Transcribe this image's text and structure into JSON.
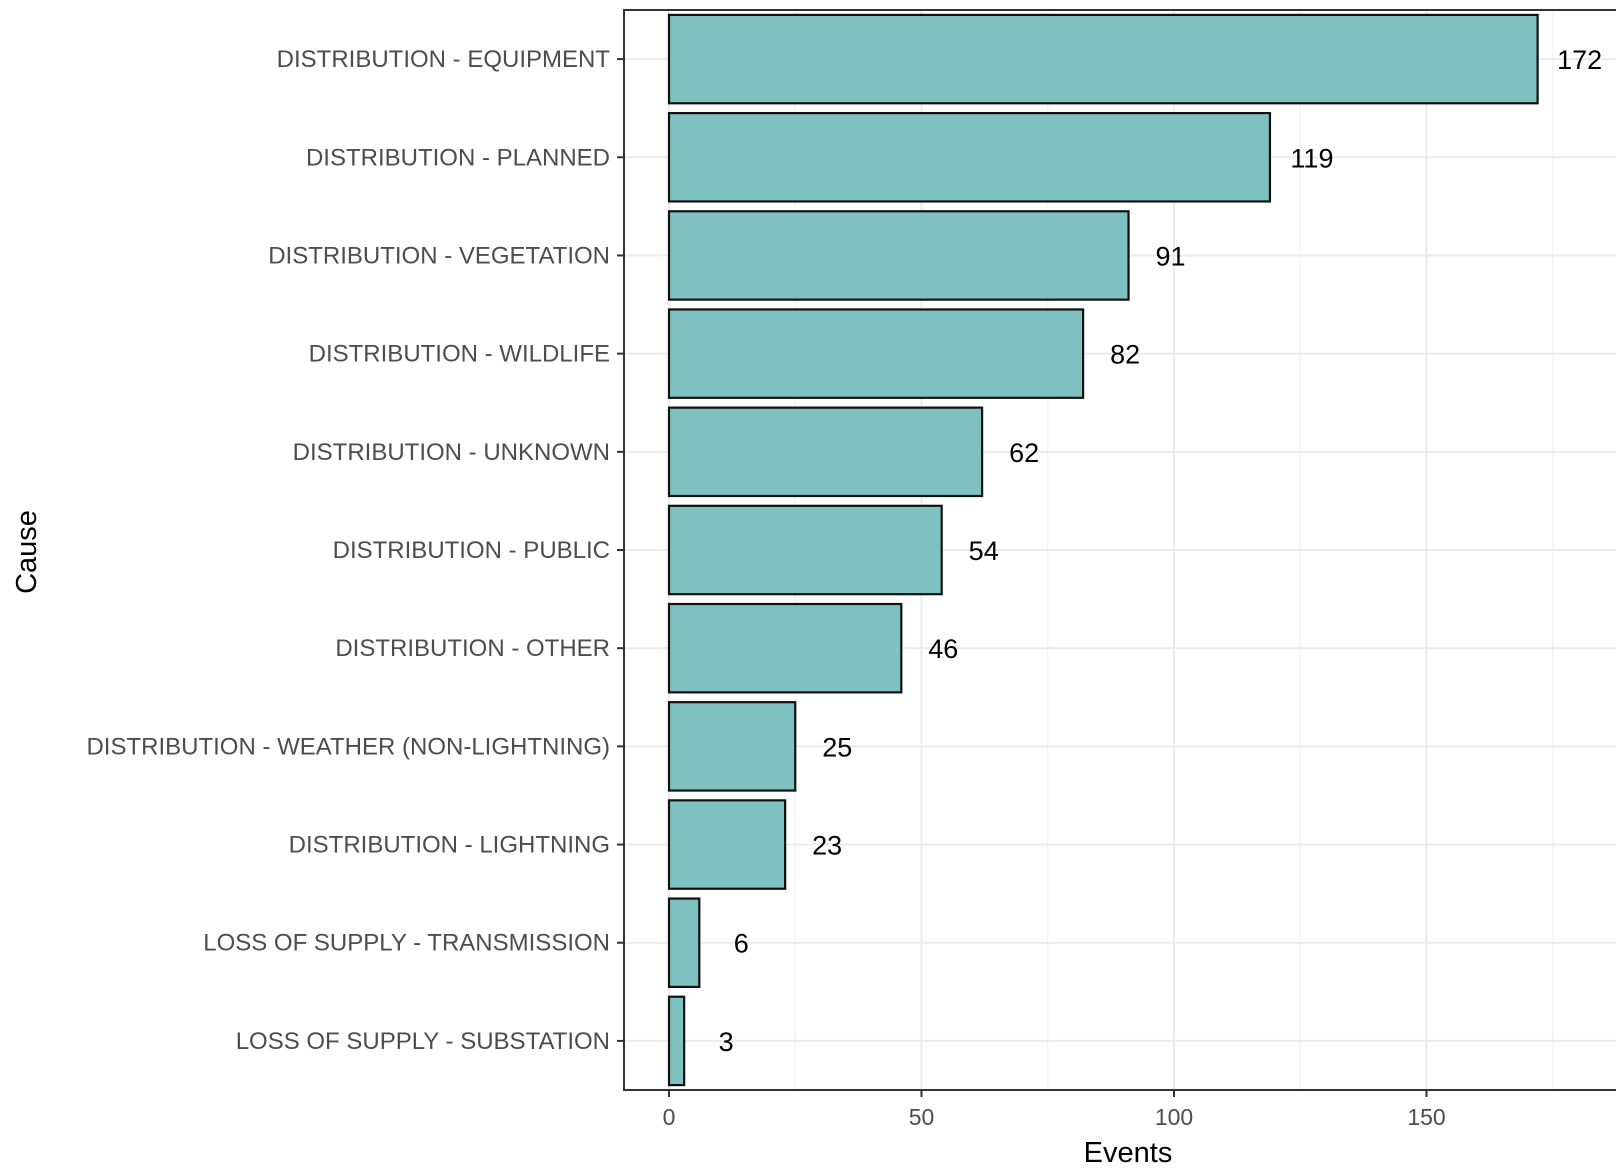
{
  "chart_data": {
    "type": "bar",
    "orientation": "horizontal",
    "categories": [
      "DISTRIBUTION - EQUIPMENT",
      "DISTRIBUTION - PLANNED",
      "DISTRIBUTION - VEGETATION",
      "DISTRIBUTION - WILDLIFE",
      "DISTRIBUTION - UNKNOWN",
      "DISTRIBUTION - PUBLIC",
      "DISTRIBUTION - OTHER",
      "DISTRIBUTION - WEATHER (NON-LIGHTNING)",
      "DISTRIBUTION - LIGHTNING",
      "LOSS OF SUPPLY - TRANSMISSION",
      "LOSS OF SUPPLY - SUBSTATION"
    ],
    "values": [
      172,
      119,
      91,
      82,
      62,
      54,
      46,
      25,
      23,
      6,
      3
    ],
    "value_labels": [
      "172",
      "119",
      "91",
      "82",
      "62",
      "54",
      "46",
      "25",
      "23",
      "6",
      "3"
    ],
    "xlabel": "Events",
    "ylabel": "Cause",
    "xlim": [
      -9,
      188
    ],
    "xticks": [
      0,
      50,
      100,
      150
    ],
    "xtick_labels": [
      "0",
      "50",
      "100",
      "150"
    ],
    "grid": true,
    "legend": "none",
    "colors": {
      "bar_fill": "#7fc1c1",
      "bar_stroke": "#111111",
      "grid_major": "#ebebeb",
      "grid_minor": "#f2f2f2",
      "panel_border": "#333333"
    }
  }
}
